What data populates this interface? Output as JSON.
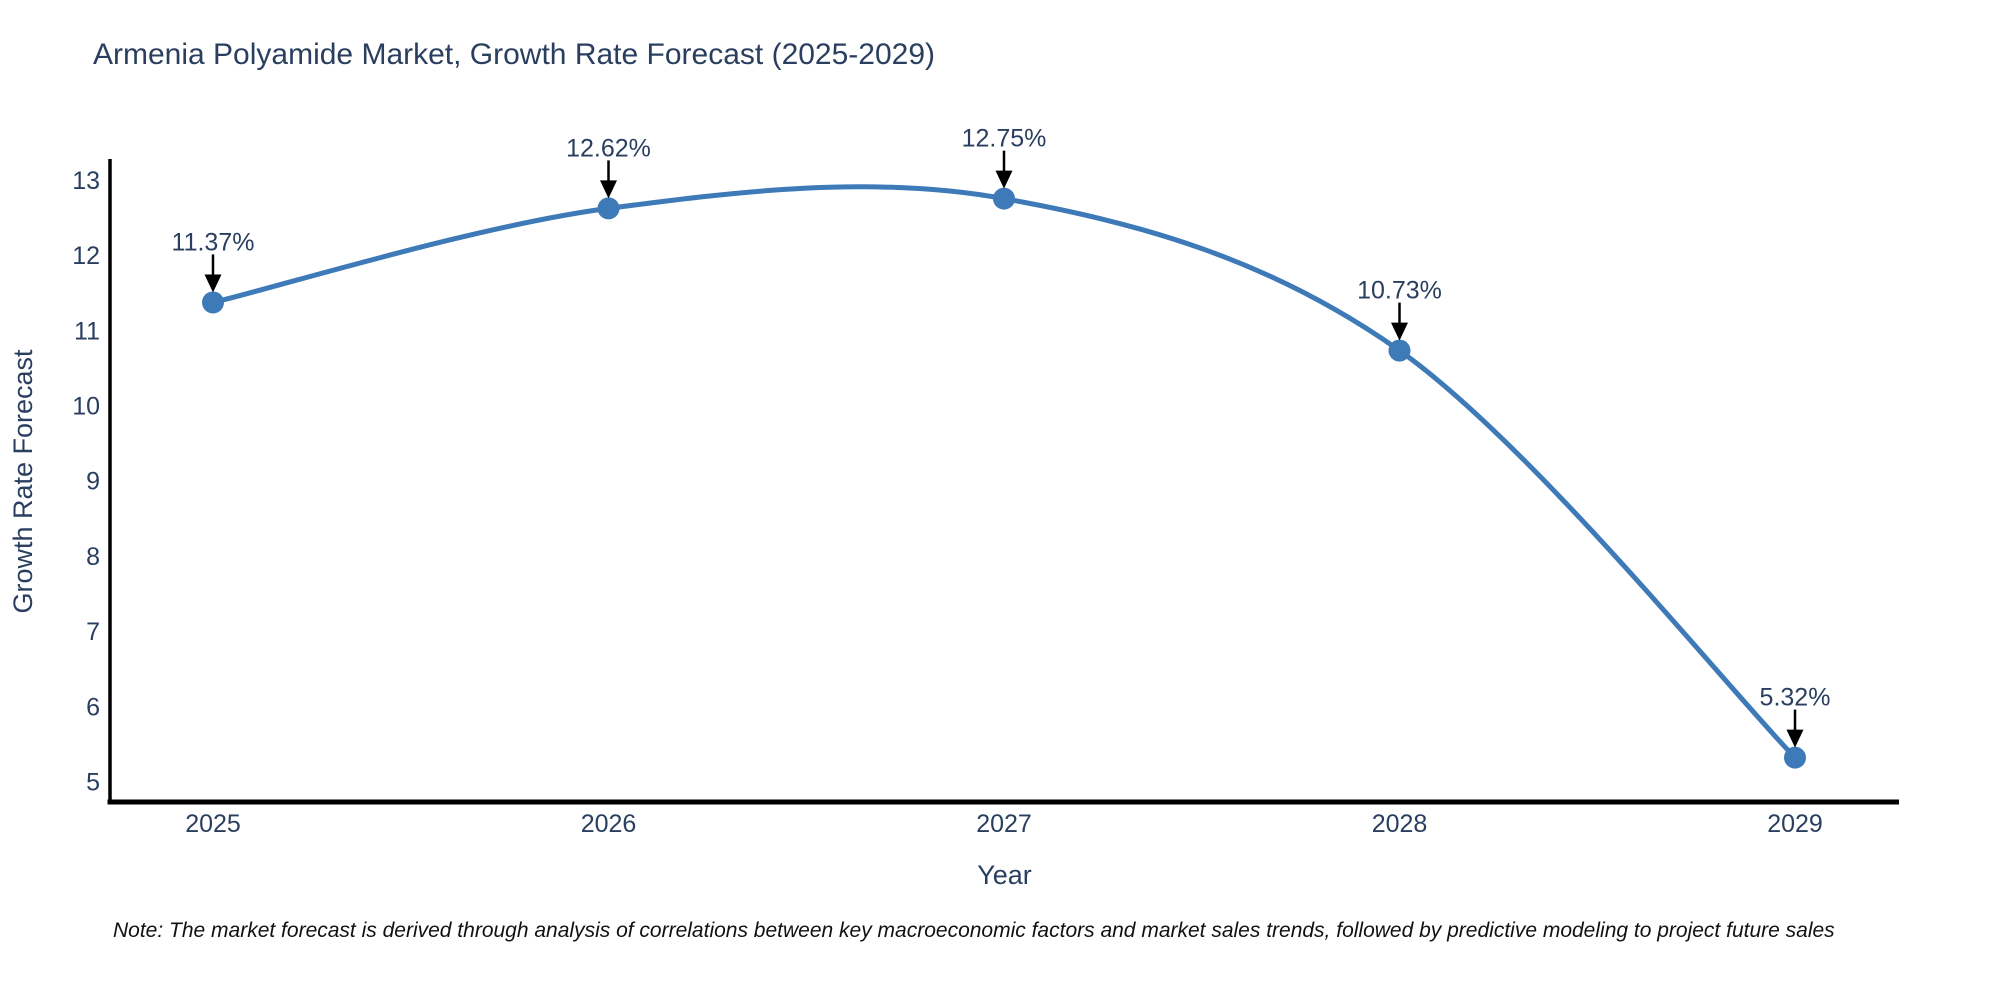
{
  "page": {
    "background": "#ffffff"
  },
  "chart_data": {
    "type": "line",
    "title": "Armenia Polyamide Market, Growth Rate Forecast (2025-2029)",
    "xlabel": "Year",
    "ylabel": "Growth Rate Forecast",
    "categories": [
      "2025",
      "2026",
      "2027",
      "2028",
      "2029"
    ],
    "values": [
      11.37,
      12.62,
      12.75,
      10.73,
      5.32
    ],
    "point_labels": [
      "11.37%",
      "12.62%",
      "12.75%",
      "10.73%",
      "5.32%"
    ],
    "yticks": [
      5,
      6,
      7,
      8,
      9,
      10,
      11,
      12,
      13
    ],
    "ylim": [
      4.73,
      13.25
    ],
    "grid": false,
    "legend": false,
    "line_shape": "spline",
    "line_color": "#3d7ab7",
    "marker_color": "#3d7ab7",
    "annotation_arrow_color": "#000000",
    "axis_color": "#000000",
    "text_color": "#2a3f5f"
  },
  "note": "Note: The market forecast is derived through analysis of correlations between key macroeconomic factors and market sales trends, followed by predictive modeling to project future sales"
}
